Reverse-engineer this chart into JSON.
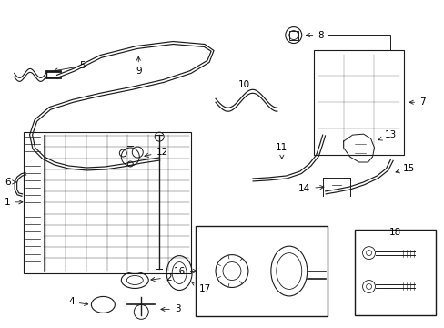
{
  "bg_color": "#ffffff",
  "line_color": "#1a1a1a",
  "lw_main": 0.9,
  "lw_thin": 0.5,
  "fig_width": 4.89,
  "fig_height": 3.6,
  "dpi": 100,
  "label_fontsize": 7.5,
  "arrow_fontsize": 6.5
}
